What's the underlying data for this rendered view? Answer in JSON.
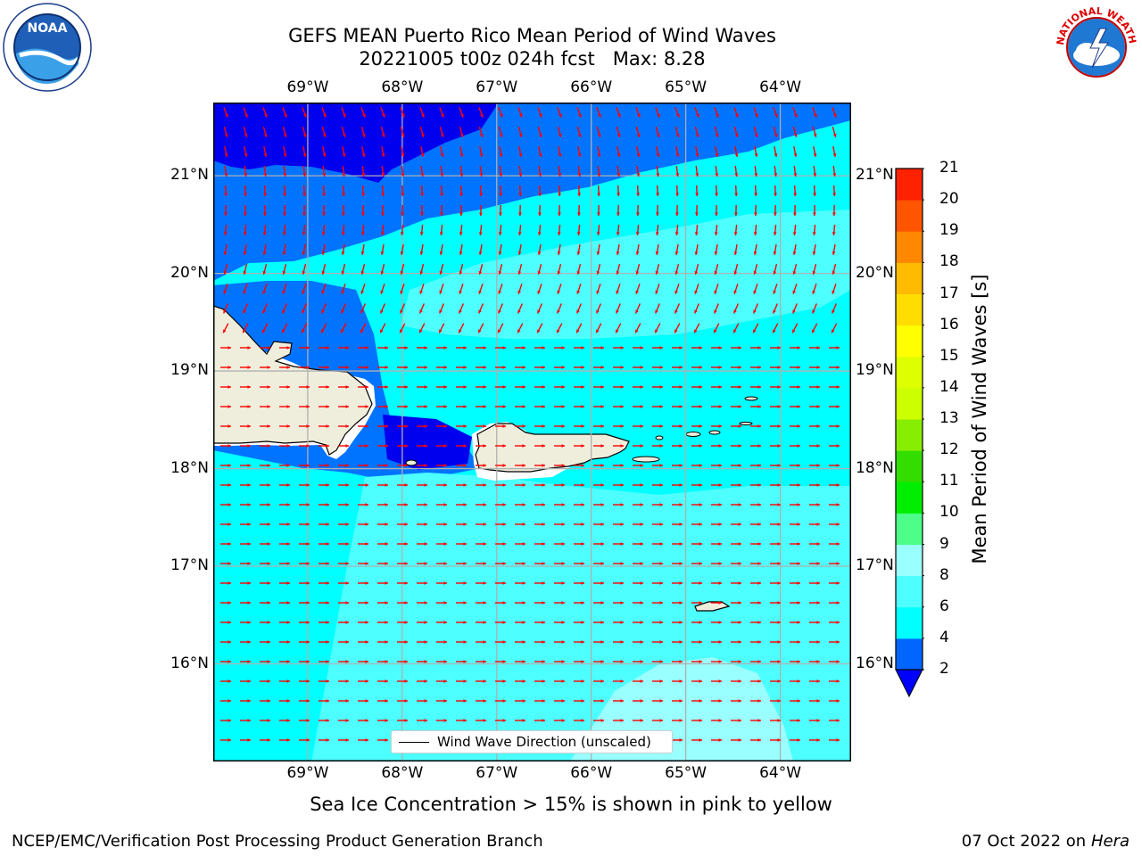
{
  "title": {
    "line1": "GEFS MEAN Puerto Rico Mean Period of Wind Waves",
    "line2": "20221005 t00z 024h fcst   Max: 8.28"
  },
  "map": {
    "lon_labels": [
      "69°W",
      "68°W",
      "67°W",
      "66°W",
      "65°W",
      "64°W"
    ],
    "lat_labels": [
      "21°N",
      "20°N",
      "19°N",
      "18°N",
      "17°N",
      "16°N"
    ],
    "lon_values": [
      -69,
      -68,
      -67,
      -66,
      -65,
      -64
    ],
    "lat_values": [
      21,
      20,
      19,
      18,
      17,
      16
    ],
    "extent": {
      "lon_min": -70,
      "lon_max": -63.25,
      "lat_min": 15,
      "lat_max": 21.75
    },
    "colors": {
      "band_2_4": "#0073ff",
      "band_4_6": "#00ffff",
      "band_6_8": "#4dffff",
      "band_8_9": "#99ffff",
      "below_2": "#0000ee",
      "land": "#efeedd",
      "arrow": "#ff0000",
      "grid": "#b0b0b0"
    },
    "legend": {
      "label": "Wind Wave Direction (unscaled)"
    }
  },
  "colorbar": {
    "label": "Mean Period of Wind Waves [s]",
    "ticks": [
      "2",
      "4",
      "6",
      "8",
      "9",
      "10",
      "11",
      "12",
      "13",
      "14",
      "15",
      "16",
      "17",
      "18",
      "19",
      "20",
      "21"
    ],
    "colors": [
      "#0066ff",
      "#00ffff",
      "#4dffff",
      "#99ffff",
      "#4dff88",
      "#00ee00",
      "#33dd00",
      "#88ee00",
      "#ccff00",
      "#ddff00",
      "#ffff00",
      "#ffdd00",
      "#ffbb00",
      "#ff8800",
      "#ff5500",
      "#ff2200"
    ],
    "under_color": "#0000ff"
  },
  "subtitle": "Sea Ice Concentration > 15% is shown in pink to yellow",
  "footer": {
    "left": "NCEP/EMC/Verification Post Processing Product Generation Branch",
    "right_date": "07 Oct 2022 on ",
    "right_host": "Hera"
  }
}
